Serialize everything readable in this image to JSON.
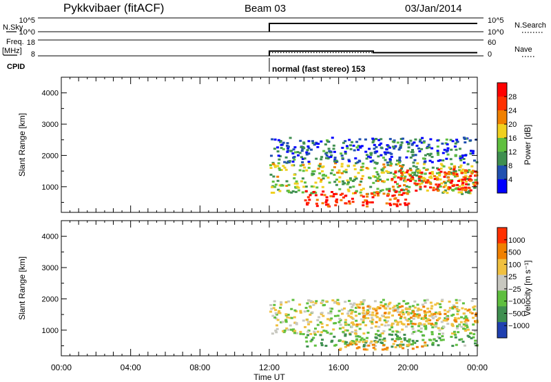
{
  "header": {
    "station": "Pykkvibaer (fitACF)",
    "beam": "Beam 03",
    "date": "03/Jan/2014"
  },
  "strip_nsky": {
    "left_label": "N.Sky",
    "right_label": "N.Search",
    "left_ticks": [
      "10^5",
      "10^0"
    ],
    "right_ticks": [
      "10^5",
      "10^0"
    ]
  },
  "strip_freq": {
    "left_label_1": "Freq.",
    "left_label_2": "[MHz]",
    "right_label": "Nave",
    "left_ticks": [
      "18",
      "8"
    ],
    "right_ticks": [
      "60",
      "0"
    ]
  },
  "cpid": {
    "label": "CPID",
    "annotation": "normal (fast stereo) 153"
  },
  "panels": {
    "power": {
      "ylabel": "Slant Range [km]",
      "yticks": [
        "4000",
        "3000",
        "2000",
        "1000"
      ],
      "colorbar_label": "Power [dB]",
      "colorbar_ticks": [
        "28",
        "24",
        "20",
        "16",
        "12",
        "8",
        "4"
      ]
    },
    "velocity": {
      "ylabel": "Slant Range [km]",
      "yticks": [
        "4000",
        "3000",
        "2000",
        "1000"
      ],
      "colorbar_label": "Velocity  [m s⁻¹]",
      "colorbar_ticks": [
        "1000",
        "500",
        "100",
        "25",
        "−25",
        "−100",
        "−500",
        "−1000"
      ]
    }
  },
  "xaxis": {
    "label": "Time UT",
    "ticks": [
      "00:00",
      "04:00",
      "08:00",
      "12:00",
      "16:00",
      "20:00",
      "00:00"
    ]
  },
  "colors": {
    "power_scale": [
      "#0000ff",
      "#2050b0",
      "#3f8f50",
      "#5fbf3f",
      "#f0d020",
      "#f08000",
      "#ff3000",
      "#ff0000"
    ],
    "velocity_scale": [
      "#2040b0",
      "#3f8f50",
      "#5fbf3f",
      "#c8c8c0",
      "#f0c040",
      "#f08000",
      "#ff3000"
    ]
  },
  "chart_data": [
    {
      "type": "line",
      "title": "N.Sky / N.Search",
      "x_range_hours": [
        0,
        24
      ],
      "series": [
        {
          "name": "N.Sky",
          "x": [
            12,
            12,
            24
          ],
          "y": [
            "10^0",
            "10^5",
            "10^5"
          ]
        }
      ]
    },
    {
      "type": "line",
      "title": "Freq. / Nave",
      "x_range_hours": [
        0,
        24
      ],
      "series": [
        {
          "name": "Freq.",
          "x": [
            12,
            12,
            18,
            18,
            24
          ],
          "y": [
            8,
            11,
            11,
            10,
            10
          ]
        },
        {
          "name": "Nave",
          "x": [
            12,
            24
          ],
          "y": [
            12,
            12
          ]
        }
      ]
    },
    {
      "type": "heatmap",
      "title": "Power",
      "x_range_hours": [
        0,
        24
      ],
      "ylim": [
        180,
        4500
      ],
      "ylabel": "Slant Range [km]",
      "clim": [
        0,
        30
      ],
      "data_start_hour": 12,
      "layers": [
        {
          "t0": 12,
          "t1": 24,
          "r0": 800,
          "r1": 1800,
          "value": 14
        },
        {
          "t0": 14,
          "t1": 20,
          "r0": 400,
          "r1": 900,
          "value": 26
        },
        {
          "t0": 19,
          "t1": 24,
          "r0": 900,
          "r1": 1600,
          "value": 24
        },
        {
          "t0": 12,
          "t1": 24,
          "r0": 1800,
          "r1": 2600,
          "value": 6
        }
      ]
    },
    {
      "type": "heatmap",
      "title": "Velocity",
      "x_range_hours": [
        0,
        24
      ],
      "ylim": [
        180,
        4500
      ],
      "ylabel": "Slant Range [km]",
      "clim": [
        -1000,
        1000
      ],
      "data_start_hour": 12,
      "layers": [
        {
          "t0": 12,
          "t1": 24,
          "r0": 900,
          "r1": 2000,
          "value": 0
        },
        {
          "t0": 17,
          "t1": 24,
          "r0": 1200,
          "r1": 1800,
          "value": -100
        },
        {
          "t0": 14,
          "t1": 24,
          "r0": 500,
          "r1": 900,
          "value": 100
        },
        {
          "t0": 16,
          "t1": 21,
          "r0": 400,
          "r1": 700,
          "value": -100
        }
      ]
    }
  ]
}
